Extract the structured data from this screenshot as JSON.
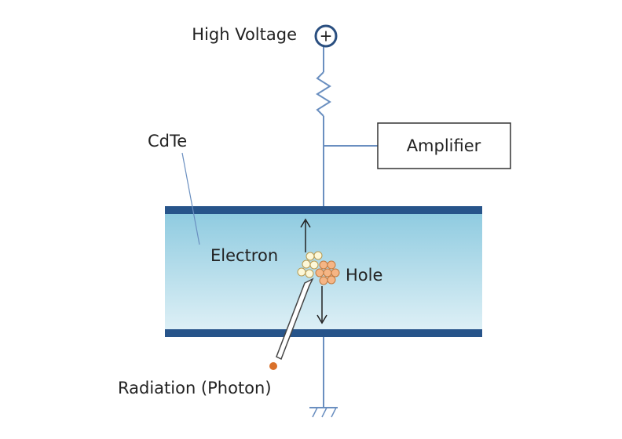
{
  "labels": {
    "high_voltage": "High Voltage",
    "plus": "+",
    "amplifier": "Amplifier",
    "cdte": "CdTe",
    "electron": "Electron",
    "hole": "Hole",
    "radiation": "Radiation (Photon)"
  }
}
